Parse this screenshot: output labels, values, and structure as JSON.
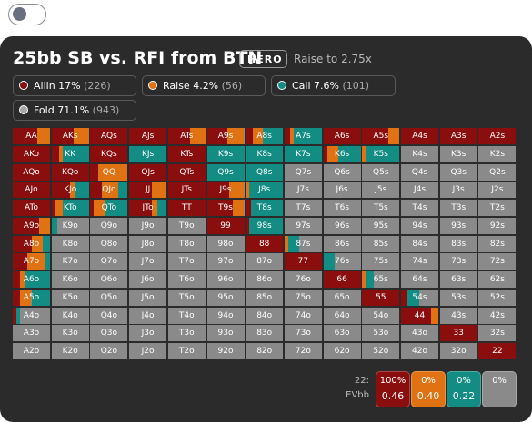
{
  "toggle": {
    "state": "off"
  },
  "header": {
    "title": "25bb SB vs. RFI from BTN",
    "badge": "HERO",
    "subtitle": "Raise to 2.75x"
  },
  "colors": {
    "allin": "#8b0e0e",
    "raise": "#e07214",
    "call": "#138c84",
    "fold": "#8a8a8a"
  },
  "legend": [
    {
      "label": "Allin 17%",
      "count": "(226)",
      "color": "#8b0e0e"
    },
    {
      "label": "Raise 4.2%",
      "count": "(56)",
      "color": "#e07214"
    },
    {
      "label": "Call 7.6%",
      "count": "(101)",
      "color": "#138c84"
    },
    {
      "label": "Fold 71.1%",
      "count": "(943)",
      "color": "#a8a8a8"
    }
  ],
  "grid": {
    "rows": [
      {
        "hands": [
          "AA",
          "AKs",
          "AQs",
          "AJs",
          "ATs",
          "A9s",
          "A8s",
          "A7s",
          "A6s",
          "A5s",
          "A4s",
          "A3s",
          "A2s"
        ],
        "mix": [
          [
            0.65,
            0.35,
            0
          ],
          [
            0.6,
            0.4,
            0
          ],
          [
            1,
            0,
            0
          ],
          [
            1,
            0,
            0
          ],
          [
            0.6,
            0.4,
            0
          ],
          [
            0.55,
            0.45,
            0
          ],
          [
            0.2,
            0.25,
            0.55
          ],
          [
            0.15,
            0.1,
            0.75
          ],
          [
            1,
            0,
            0
          ],
          [
            0.7,
            0.3,
            0
          ],
          [
            1,
            0,
            0
          ],
          [
            1,
            0,
            0
          ],
          [
            1,
            0,
            0
          ]
        ]
      },
      {
        "hands": [
          "AKo",
          "KK",
          "KQs",
          "KJs",
          "KTs",
          "K9s",
          "K8s",
          "K7s",
          "K6s",
          "K5s",
          "K4s",
          "K3s",
          "K2s"
        ],
        "mix": [
          [
            1,
            0,
            0
          ],
          [
            0.2,
            0.1,
            0.7
          ],
          [
            1,
            0,
            0
          ],
          [
            0,
            0,
            1
          ],
          [
            1,
            0,
            0
          ],
          [
            0,
            0,
            1
          ],
          [
            0,
            0,
            1
          ],
          [
            0,
            0,
            1
          ],
          [
            0.1,
            0.3,
            0.6
          ],
          [
            0,
            0.1,
            0.9
          ],
          [
            0,
            0,
            0
          ],
          [
            0,
            0,
            0
          ],
          [
            0,
            0,
            0
          ]
        ]
      },
      {
        "hands": [
          "AQo",
          "KQo",
          "QQ",
          "QJs",
          "QTs",
          "Q9s",
          "Q8s",
          "Q7s",
          "Q6s",
          "Q5s",
          "Q4s",
          "Q3s",
          "Q2s"
        ],
        "mix": [
          [
            1,
            0,
            0
          ],
          [
            1,
            0,
            0
          ],
          [
            0.2,
            0.8,
            0
          ],
          [
            1,
            0,
            0
          ],
          [
            1,
            0,
            0
          ],
          [
            0,
            0,
            1
          ],
          [
            0,
            0,
            1
          ],
          [
            0,
            0,
            0
          ],
          [
            0,
            0,
            0
          ],
          [
            0,
            0,
            0
          ],
          [
            0,
            0,
            0
          ],
          [
            0,
            0,
            0
          ],
          [
            0,
            0,
            0
          ]
        ]
      },
      {
        "hands": [
          "AJo",
          "KJo",
          "QJo",
          "JJ",
          "JTs",
          "J9s",
          "J8s",
          "J7s",
          "J6s",
          "J5s",
          "J4s",
          "J3s",
          "J2s"
        ],
        "mix": [
          [
            1,
            0,
            0
          ],
          [
            0.5,
            0.15,
            0.35
          ],
          [
            0.3,
            0.45,
            0.25
          ],
          [
            0.6,
            0.4,
            0
          ],
          [
            1,
            0,
            0
          ],
          [
            0.6,
            0.4,
            0
          ],
          [
            0,
            0.1,
            0.9
          ],
          [
            0,
            0,
            0
          ],
          [
            0,
            0,
            0
          ],
          [
            0,
            0,
            0
          ],
          [
            0,
            0,
            0
          ],
          [
            0,
            0,
            0
          ],
          [
            0,
            0,
            0
          ]
        ]
      },
      {
        "hands": [
          "ATo",
          "KTo",
          "QTo",
          "JTo",
          "TT",
          "T9s",
          "T8s",
          "T7s",
          "T6s",
          "T5s",
          "T4s",
          "T3s",
          "T2s"
        ],
        "mix": [
          [
            1,
            0,
            0
          ],
          [
            0.1,
            0.2,
            0.7
          ],
          [
            0.1,
            0.3,
            0.6
          ],
          [
            0.6,
            0.15,
            0.25
          ],
          [
            1,
            0,
            0
          ],
          [
            0.7,
            0.3,
            0
          ],
          [
            0.15,
            0,
            0.85
          ],
          [
            0,
            0,
            0
          ],
          [
            0,
            0,
            0
          ],
          [
            0,
            0,
            0
          ],
          [
            0,
            0,
            0
          ],
          [
            0,
            0,
            0
          ],
          [
            0,
            0,
            0
          ]
        ]
      },
      {
        "hands": [
          "A9o",
          "K9o",
          "Q9o",
          "J9o",
          "T9o",
          "99",
          "98s",
          "97s",
          "96s",
          "95s",
          "94s",
          "93s",
          "92s"
        ],
        "mix": [
          [
            0.7,
            0.3,
            0
          ],
          [
            0,
            0,
            0.15
          ],
          [
            0,
            0,
            0
          ],
          [
            0,
            0,
            0
          ],
          [
            0,
            0,
            0
          ],
          [
            1,
            0,
            0
          ],
          [
            0.1,
            0,
            0.9
          ],
          [
            0,
            0,
            0
          ],
          [
            0,
            0,
            0
          ],
          [
            0,
            0,
            0
          ],
          [
            0,
            0,
            0
          ],
          [
            0,
            0,
            0
          ],
          [
            0,
            0,
            0
          ]
        ]
      },
      {
        "hands": [
          "A8o",
          "K8o",
          "Q8o",
          "J8o",
          "T8o",
          "98o",
          "88",
          "87s",
          "86s",
          "85s",
          "84s",
          "83s",
          "82s"
        ],
        "mix": [
          [
            0.5,
            0.3,
            0.2
          ],
          [
            0,
            0,
            0
          ],
          [
            0,
            0,
            0
          ],
          [
            0,
            0,
            0
          ],
          [
            0,
            0,
            0
          ],
          [
            0,
            0,
            0
          ],
          [
            1,
            0,
            0
          ],
          [
            0,
            0.1,
            0.3
          ],
          [
            0,
            0,
            0
          ],
          [
            0,
            0,
            0
          ],
          [
            0,
            0,
            0
          ],
          [
            0,
            0,
            0
          ],
          [
            0,
            0,
            0
          ]
        ]
      },
      {
        "hands": [
          "A7o",
          "K7o",
          "Q7o",
          "J7o",
          "T7o",
          "97o",
          "87o",
          "77",
          "76s",
          "75s",
          "74s",
          "73s",
          "72s"
        ],
        "mix": [
          [
            0.4,
            0.45,
            0.15
          ],
          [
            0,
            0,
            0
          ],
          [
            0,
            0,
            0
          ],
          [
            0,
            0,
            0
          ],
          [
            0,
            0,
            0
          ],
          [
            0,
            0,
            0
          ],
          [
            0,
            0,
            0
          ],
          [
            1,
            0,
            0
          ],
          [
            0,
            0,
            0.3
          ],
          [
            0,
            0,
            0
          ],
          [
            0,
            0,
            0
          ],
          [
            0,
            0,
            0
          ],
          [
            0,
            0,
            0
          ]
        ]
      },
      {
        "hands": [
          "A6o",
          "K6o",
          "Q6o",
          "J6o",
          "T6o",
          "96o",
          "86o",
          "76o",
          "66",
          "65s",
          "64s",
          "63s",
          "62s"
        ],
        "mix": [
          [
            0.2,
            0.15,
            0.65
          ],
          [
            0,
            0,
            0
          ],
          [
            0,
            0,
            0
          ],
          [
            0,
            0,
            0
          ],
          [
            0,
            0,
            0
          ],
          [
            0,
            0,
            0
          ],
          [
            0,
            0,
            0
          ],
          [
            0,
            0,
            0
          ],
          [
            1,
            0,
            0
          ],
          [
            0,
            0.1,
            0.2
          ],
          [
            0,
            0,
            0
          ],
          [
            0,
            0,
            0
          ],
          [
            0,
            0,
            0
          ]
        ]
      },
      {
        "hands": [
          "A5o",
          "K5o",
          "Q5o",
          "J5o",
          "T5o",
          "95o",
          "85o",
          "75o",
          "65o",
          "55",
          "54s",
          "53s",
          "52s"
        ],
        "mix": [
          [
            0.2,
            0.3,
            0.5
          ],
          [
            0,
            0,
            0
          ],
          [
            0,
            0,
            0
          ],
          [
            0,
            0,
            0
          ],
          [
            0,
            0,
            0
          ],
          [
            0,
            0,
            0
          ],
          [
            0,
            0,
            0
          ],
          [
            0,
            0,
            0
          ],
          [
            0,
            0,
            0
          ],
          [
            1,
            0,
            0
          ],
          [
            0.15,
            0,
            0.35
          ],
          [
            0,
            0,
            0
          ],
          [
            0,
            0,
            0
          ]
        ]
      },
      {
        "hands": [
          "A4o",
          "K4o",
          "Q4o",
          "J4o",
          "T4o",
          "94o",
          "84o",
          "74o",
          "64o",
          "54o",
          "44",
          "43s",
          "42s"
        ],
        "mix": [
          [
            0.1,
            0,
            0.1
          ],
          [
            0,
            0,
            0
          ],
          [
            0,
            0,
            0
          ],
          [
            0,
            0,
            0
          ],
          [
            0,
            0,
            0
          ],
          [
            0,
            0,
            0
          ],
          [
            0,
            0,
            0
          ],
          [
            0,
            0,
            0
          ],
          [
            0,
            0,
            0
          ],
          [
            0,
            0,
            0
          ],
          [
            0.8,
            0.2,
            0
          ],
          [
            0,
            0,
            0
          ],
          [
            0,
            0,
            0
          ]
        ]
      },
      {
        "hands": [
          "A3o",
          "K3o",
          "Q3o",
          "J3o",
          "T3o",
          "93o",
          "83o",
          "73o",
          "63o",
          "53o",
          "43o",
          "33",
          "32s"
        ],
        "mix": [
          [
            0,
            0,
            0
          ],
          [
            0,
            0,
            0
          ],
          [
            0,
            0,
            0
          ],
          [
            0,
            0,
            0
          ],
          [
            0,
            0,
            0
          ],
          [
            0,
            0,
            0
          ],
          [
            0,
            0,
            0
          ],
          [
            0,
            0,
            0
          ],
          [
            0,
            0,
            0
          ],
          [
            0,
            0,
            0
          ],
          [
            0,
            0,
            0
          ],
          [
            1,
            0,
            0
          ],
          [
            0,
            0,
            0
          ]
        ]
      },
      {
        "hands": [
          "A2o",
          "K2o",
          "Q2o",
          "J2o",
          "T2o",
          "92o",
          "82o",
          "72o",
          "62o",
          "52o",
          "42o",
          "32o",
          "22"
        ],
        "mix": [
          [
            0,
            0,
            0
          ],
          [
            0,
            0,
            0
          ],
          [
            0,
            0,
            0
          ],
          [
            0,
            0,
            0
          ],
          [
            0,
            0,
            0
          ],
          [
            0,
            0,
            0
          ],
          [
            0,
            0,
            0
          ],
          [
            0,
            0,
            0
          ],
          [
            0,
            0,
            0
          ],
          [
            0,
            0,
            0
          ],
          [
            0,
            0,
            0
          ],
          [
            0,
            0,
            0
          ],
          [
            1,
            0,
            0
          ]
        ]
      }
    ],
    "selected": "22"
  },
  "detail": {
    "hand_label": "22:",
    "ev_label": "EVbb",
    "boxes": [
      {
        "pct": "100%",
        "ev": "0.46",
        "color": "#8b0e0e"
      },
      {
        "pct": "0%",
        "ev": "0.40",
        "color": "#e07214"
      },
      {
        "pct": "0%",
        "ev": "0.22",
        "color": "#138c84"
      },
      {
        "pct": "0%",
        "ev": "",
        "color": "#8a8a8a"
      }
    ]
  }
}
